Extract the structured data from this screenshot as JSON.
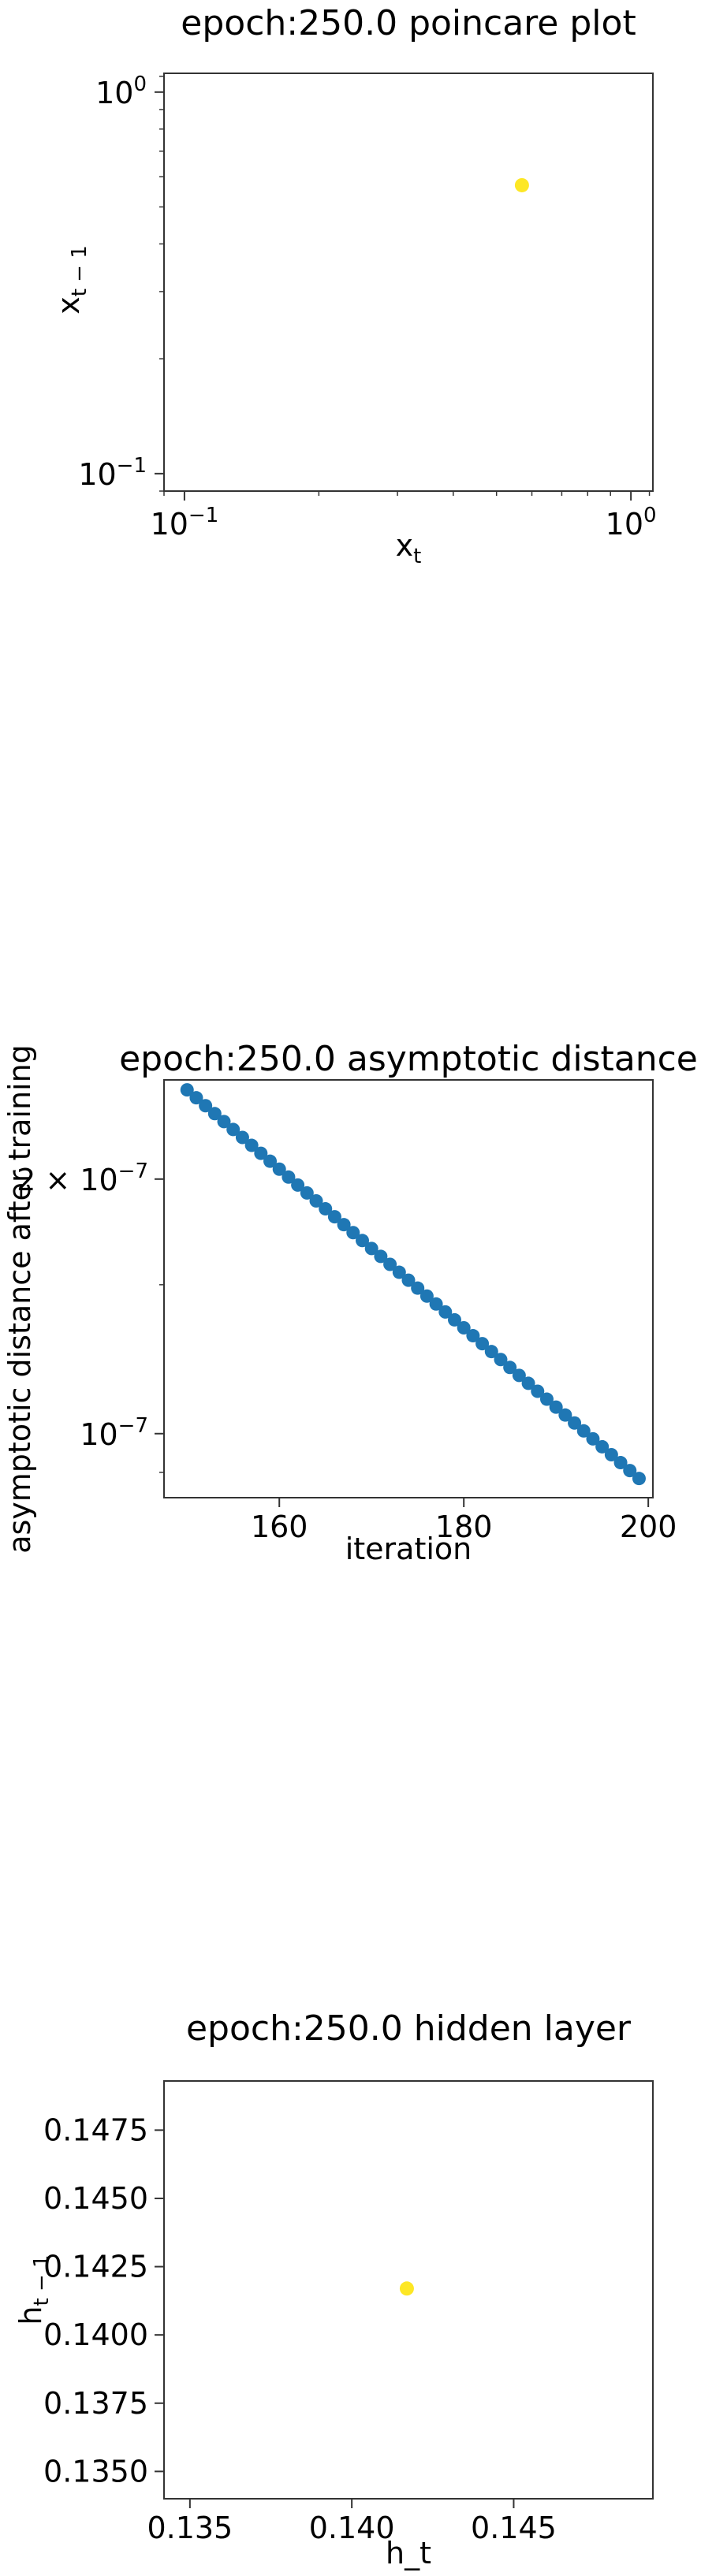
{
  "chart_data": [
    {
      "type": "scatter",
      "title": "epoch:250.0 poincare plot",
      "xlabel_base": "x",
      "xlabel_sub": "t",
      "ylabel_base": "x",
      "ylabel_sub": "t − 1",
      "xscale": "log",
      "yscale": "log",
      "xlim": [
        0.09,
        1.12
      ],
      "ylim": [
        0.09,
        1.12
      ],
      "tick_values": [
        0.1,
        1.0
      ],
      "tick_labels": [
        {
          "base": "10",
          "exp": "−1"
        },
        {
          "base": "10",
          "exp": "0"
        }
      ],
      "points": [
        {
          "x": 0.57,
          "y": 0.57
        }
      ],
      "point_color": "#fde725",
      "grid": false
    },
    {
      "type": "scatter",
      "title": "epoch:250.0 asymptotic distance",
      "xlabel": "iteration",
      "ylabel": "asymptotic distance after training",
      "yscale": "log",
      "xlim": [
        147.5,
        200.5
      ],
      "ylim": [
        8.4e-08,
        2.62e-07
      ],
      "x_ticks": [
        160,
        180,
        200
      ],
      "y_ticks": [
        {
          "value": 1e-07,
          "label_pre": "",
          "label_exp": "−7"
        },
        {
          "value": 2e-07,
          "label_pre": "2 × ",
          "label_exp": "−7"
        }
      ],
      "x_start": 150,
      "x_end": 199,
      "y_start": 2.55e-07,
      "y_end": 8.85e-08,
      "point_color": "#1f77b4",
      "grid": false
    },
    {
      "type": "scatter",
      "title": "epoch:250.0 hidden layer",
      "xlabel": "h_t",
      "ylabel_base": "h",
      "ylabel_sub": "t − 1",
      "xlim": [
        0.1342,
        0.1493
      ],
      "ylim": [
        0.134,
        0.1493
      ],
      "x_ticks": [
        0.135,
        0.14,
        0.145
      ],
      "x_tick_labels": [
        "0.135",
        "0.140",
        "0.145"
      ],
      "y_ticks": [
        0.135,
        0.1375,
        0.14,
        0.1425,
        0.145,
        0.1475
      ],
      "y_tick_labels": [
        "0.1350",
        "0.1375",
        "0.1400",
        "0.1425",
        "0.1450",
        "0.1475"
      ],
      "points": [
        {
          "x": 0.1417,
          "y": 0.1417
        }
      ],
      "point_color": "#fde725",
      "grid": false
    }
  ]
}
